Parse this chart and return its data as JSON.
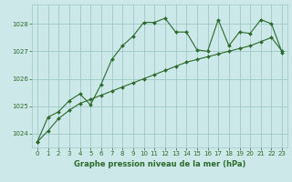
{
  "line1_x": [
    0,
    1,
    2,
    3,
    4,
    5,
    6,
    7,
    8,
    9,
    10,
    11,
    12,
    13,
    14,
    15,
    16,
    17,
    18,
    19,
    20,
    21,
    22,
    23
  ],
  "line1_y": [
    1023.7,
    1024.6,
    1024.8,
    1025.2,
    1025.45,
    1025.05,
    1025.8,
    1026.7,
    1027.2,
    1027.55,
    1028.05,
    1028.05,
    1028.2,
    1027.7,
    1027.7,
    1027.05,
    1027.0,
    1028.15,
    1027.2,
    1027.7,
    1027.65,
    1028.15,
    1028.0,
    1026.95
  ],
  "line2_x": [
    0,
    1,
    2,
    3,
    4,
    5,
    6,
    7,
    8,
    9,
    10,
    11,
    12,
    13,
    14,
    15,
    16,
    17,
    18,
    19,
    20,
    21,
    22,
    23
  ],
  "line2_y": [
    1023.7,
    1024.1,
    1024.55,
    1024.85,
    1025.1,
    1025.25,
    1025.4,
    1025.55,
    1025.7,
    1025.85,
    1026.0,
    1026.15,
    1026.3,
    1026.45,
    1026.6,
    1026.7,
    1026.8,
    1026.9,
    1027.0,
    1027.1,
    1027.2,
    1027.35,
    1027.5,
    1027.0
  ],
  "line_color": "#2d6a2d",
  "bg_color": "#cce8e8",
  "grid_color": "#9ec8c8",
  "xlabel": "Graphe pression niveau de la mer (hPa)",
  "ylim": [
    1023.5,
    1028.7
  ],
  "xlim": [
    -0.5,
    23.5
  ],
  "yticks": [
    1024,
    1025,
    1026,
    1027,
    1028
  ],
  "xticks": [
    0,
    1,
    2,
    3,
    4,
    5,
    6,
    7,
    8,
    9,
    10,
    11,
    12,
    13,
    14,
    15,
    16,
    17,
    18,
    19,
    20,
    21,
    22,
    23
  ],
  "tick_fontsize": 5.0,
  "xlabel_fontsize": 6.0
}
